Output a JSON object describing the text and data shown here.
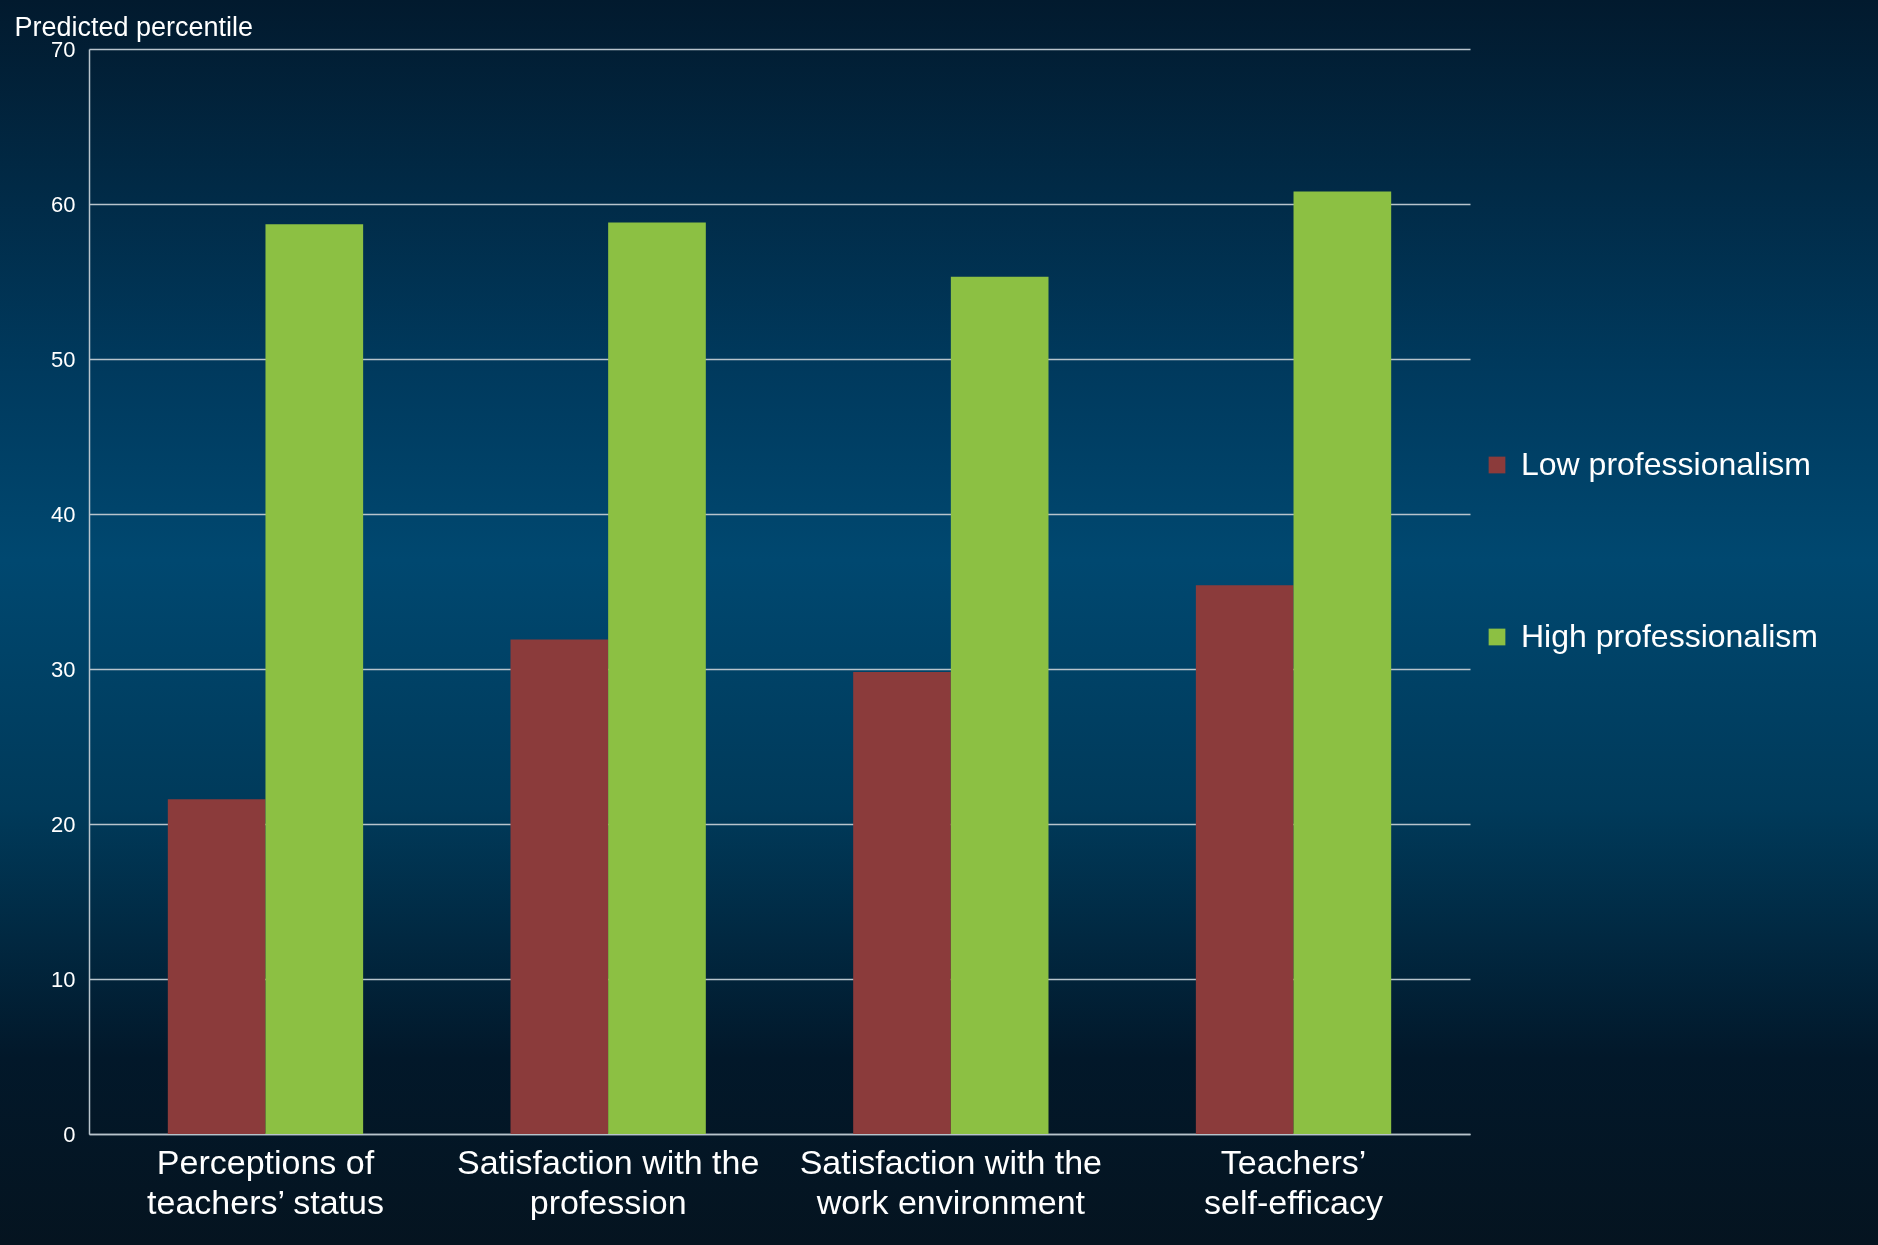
{
  "chart_data": {
    "type": "bar",
    "ylabel": "Predicted percentile",
    "categories": [
      "Perceptions of teachers’ status",
      "Satisfaction with the profession",
      "Satisfaction with the work environment",
      "Teachers’ self-efficacy"
    ],
    "series": [
      {
        "name": "Low professionalism",
        "color": "#8b3b3b",
        "values": [
          21.6,
          31.9,
          29.8,
          35.4
        ]
      },
      {
        "name": "High professionalism",
        "color": "#8cc043",
        "values": [
          58.7,
          58.8,
          55.3,
          60.8
        ]
      }
    ],
    "ylim": [
      0,
      70
    ],
    "yticks": [
      0,
      10,
      20,
      30,
      40,
      50,
      60,
      70
    ],
    "grid": "y",
    "legend": "right"
  }
}
